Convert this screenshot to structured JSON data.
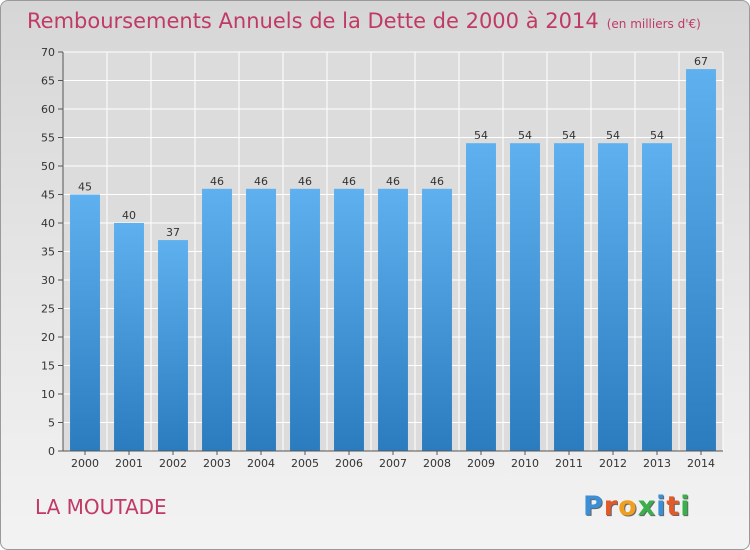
{
  "title": "Remboursements Annuels de la Dette de 2000 à 2014",
  "subtitle": "(en milliers d'€)",
  "commune": "LA MOUTADE",
  "logo": {
    "letters": [
      "P",
      "r",
      "o",
      "x",
      "i",
      "t",
      "i"
    ],
    "colors": [
      "#3a8fd6",
      "#e25a2a",
      "#f0a020",
      "#3ab04a",
      "#3a8fd6",
      "#e25a2a",
      "#3ab04a"
    ]
  },
  "colors": {
    "bar_top": "#5eb0ee",
    "bar_bottom": "#2a7cbf",
    "title": "#c03a64"
  },
  "chart_data": {
    "type": "bar",
    "categories": [
      "2000",
      "2001",
      "2002",
      "2003",
      "2004",
      "2005",
      "2006",
      "2007",
      "2008",
      "2009",
      "2010",
      "2011",
      "2012",
      "2013",
      "2014"
    ],
    "values": [
      45,
      40,
      37,
      46,
      46,
      46,
      46,
      46,
      46,
      54,
      54,
      54,
      54,
      54,
      67
    ],
    "ylim": [
      0,
      70
    ],
    "yticks": [
      0,
      5,
      10,
      15,
      20,
      25,
      30,
      35,
      40,
      45,
      50,
      55,
      60,
      65,
      70
    ],
    "grid": true,
    "data_labels": true
  }
}
